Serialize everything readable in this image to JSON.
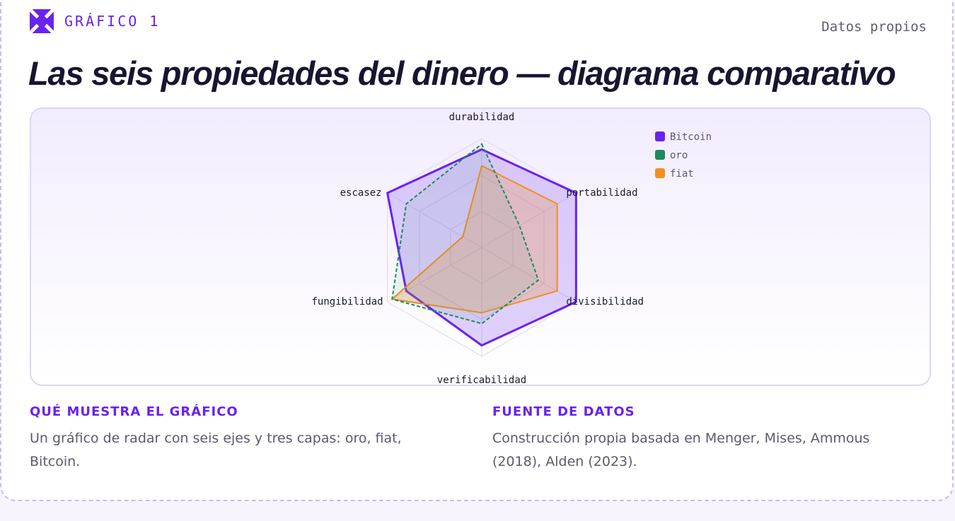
{
  "header": {
    "figure_label": "GRÁFICO 1",
    "source_tag": "Datos propios",
    "title": "Las seis propiedades del dinero — diagrama comparativo"
  },
  "colors": {
    "accent": "#6a22f0",
    "bitcoin": "#6a22f0",
    "oro": "#1f8a5b",
    "fiat": "#f0901f"
  },
  "chart_data": {
    "type": "radar",
    "axes": [
      "durabilidad",
      "portabilidad",
      "divisibilidad",
      "verificabilidad",
      "fungibilidad",
      "escasez"
    ],
    "range": [
      0,
      10
    ],
    "grid": true,
    "legend_position": "top-right",
    "series": [
      {
        "name": "Bitcoin",
        "values": [
          9,
          10,
          10,
          9,
          8,
          10
        ],
        "color": "#6a22f0",
        "style": "solid-fill"
      },
      {
        "name": "oro",
        "values": [
          9.5,
          4,
          6,
          7,
          9.5,
          8
        ],
        "color": "#1f8a5b",
        "style": "dashed"
      },
      {
        "name": "fiat",
        "values": [
          7.5,
          8,
          8,
          6,
          9.5,
          2
        ],
        "color": "#f0901f",
        "style": "solid-fill"
      }
    ]
  },
  "footer": {
    "what_heading": "QUÉ MUESTRA EL GRÁFICO",
    "what_text": "Un gráfico de radar con seis ejes y tres capas: oro, fiat, Bitcoin.",
    "source_heading": "FUENTE DE DATOS",
    "source_text": "Construcción propia basada en Menger, Mises, Ammous (2018), Alden (2023)."
  }
}
